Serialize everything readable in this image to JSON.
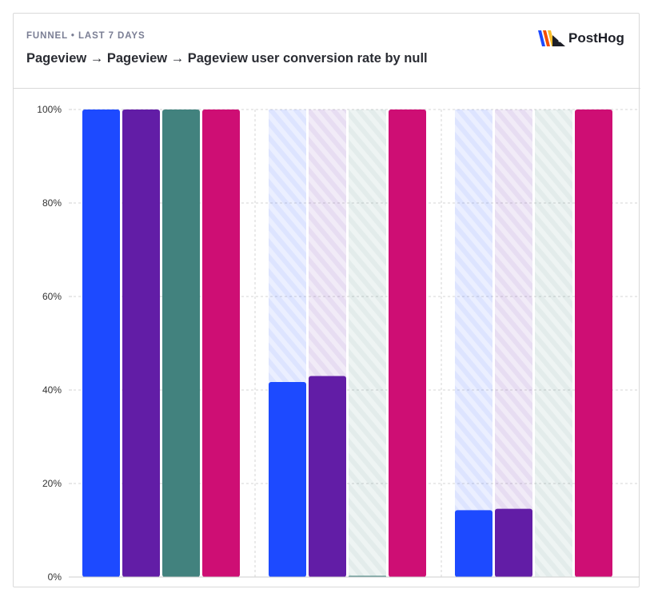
{
  "header": {
    "subtitle": "FUNNEL • LAST 7 DAYS",
    "title": "Pageview → Pageview → Pageview user conversion rate by null",
    "brand": "PostHog"
  },
  "colors": {
    "series": [
      "#1d4aff",
      "#621da6",
      "#42827e",
      "#ce0e74"
    ]
  },
  "chart_data": {
    "type": "bar",
    "categories": [
      "",
      "",
      ""
    ],
    "series": [
      {
        "name": "",
        "values": [
          100,
          41.7,
          14.3
        ]
      },
      {
        "name": "",
        "values": [
          100,
          43.0,
          14.6
        ]
      },
      {
        "name": "",
        "values": [
          100,
          0.2,
          0
        ]
      },
      {
        "name": "",
        "values": [
          100,
          100,
          100
        ]
      }
    ],
    "ylim": [
      0,
      100
    ],
    "yticks": [
      "0%",
      "20%",
      "40%",
      "60%",
      "80%",
      "100%"
    ],
    "grid": true,
    "xlabel": "",
    "ylabel": ""
  }
}
